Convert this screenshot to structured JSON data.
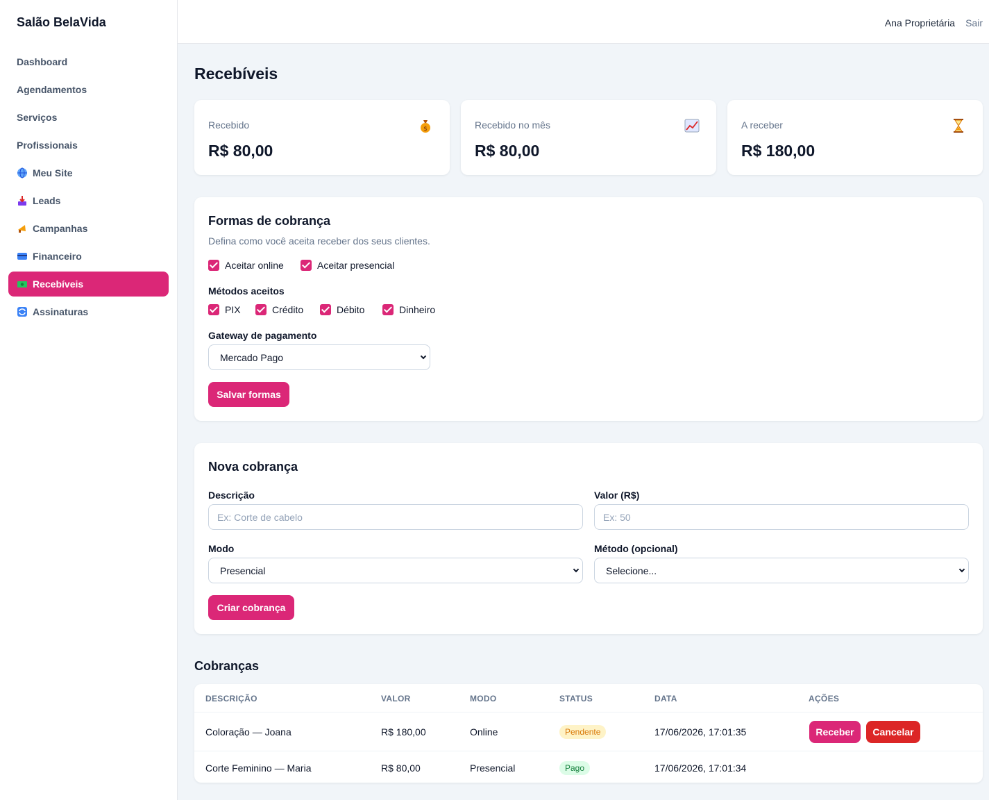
{
  "sidebar": {
    "brand": "Salão BelaVida",
    "items": [
      {
        "label": "Dashboard",
        "icon": "",
        "active": false
      },
      {
        "label": "Agendamentos",
        "icon": "",
        "active": false
      },
      {
        "label": "Serviços",
        "icon": "",
        "active": false
      },
      {
        "label": "Profissionais",
        "icon": "",
        "active": false
      },
      {
        "label": "Meu Site",
        "icon": "globe-icon",
        "active": false
      },
      {
        "label": "Leads",
        "icon": "inbox-tray-icon",
        "active": false
      },
      {
        "label": "Campanhas",
        "icon": "megaphone-icon",
        "active": false
      },
      {
        "label": "Financeiro",
        "icon": "credit-card-icon",
        "active": false
      },
      {
        "label": "Recebíveis",
        "icon": "banknote-icon",
        "active": true
      },
      {
        "label": "Assinaturas",
        "icon": "repeat-icon",
        "active": false
      }
    ]
  },
  "header": {
    "user": "Ana Proprietária",
    "logout": "Sair"
  },
  "page": {
    "title": "Recebíveis"
  },
  "stats": [
    {
      "label": "Recebido",
      "value": "R$ 80,00",
      "icon": "money-bag-icon"
    },
    {
      "label": "Recebido no mês",
      "value": "R$ 80,00",
      "icon": "chart-increasing-icon"
    },
    {
      "label": "A receber",
      "value": "R$ 180,00",
      "icon": "hourglass-icon"
    }
  ],
  "payment_forms": {
    "title": "Formas de cobrança",
    "subtitle": "Defina como você aceita receber dos seus clientes.",
    "accept_online": "Aceitar online",
    "accept_in_person": "Aceitar presencial",
    "methods_label": "Métodos aceitos",
    "methods": [
      "PIX",
      "Crédito",
      "Débito",
      "Dinheiro"
    ],
    "gateway_label": "Gateway de pagamento",
    "gateway_value": "Mercado Pago",
    "save_button": "Salvar formas"
  },
  "new_charge": {
    "title": "Nova cobrança",
    "description_label": "Descrição",
    "description_placeholder": "Ex: Corte de cabelo",
    "value_label": "Valor (R$)",
    "value_placeholder": "Ex: 50",
    "mode_label": "Modo",
    "mode_value": "Presencial",
    "method_label": "Método (opcional)",
    "method_value": "Selecione...",
    "create_button": "Criar cobrança"
  },
  "charges": {
    "title": "Cobranças",
    "columns": [
      "DESCRIÇÃO",
      "VALOR",
      "MODO",
      "STATUS",
      "DATA",
      "AÇÕES"
    ],
    "rows": [
      {
        "description": "Coloração — Joana",
        "value": "R$ 180,00",
        "mode": "Online",
        "status": "Pendente",
        "date": "17/06/2026, 17:01:35",
        "actions": [
          "Receber",
          "Cancelar"
        ]
      },
      {
        "description": "Corte Feminino — Maria",
        "value": "R$ 80,00",
        "mode": "Presencial",
        "status": "Pago",
        "date": "17/06/2026, 17:01:34",
        "actions": []
      }
    ]
  },
  "colors": {
    "accent": "#db2777",
    "danger": "#dc2626",
    "background": "#f1f5f9"
  }
}
